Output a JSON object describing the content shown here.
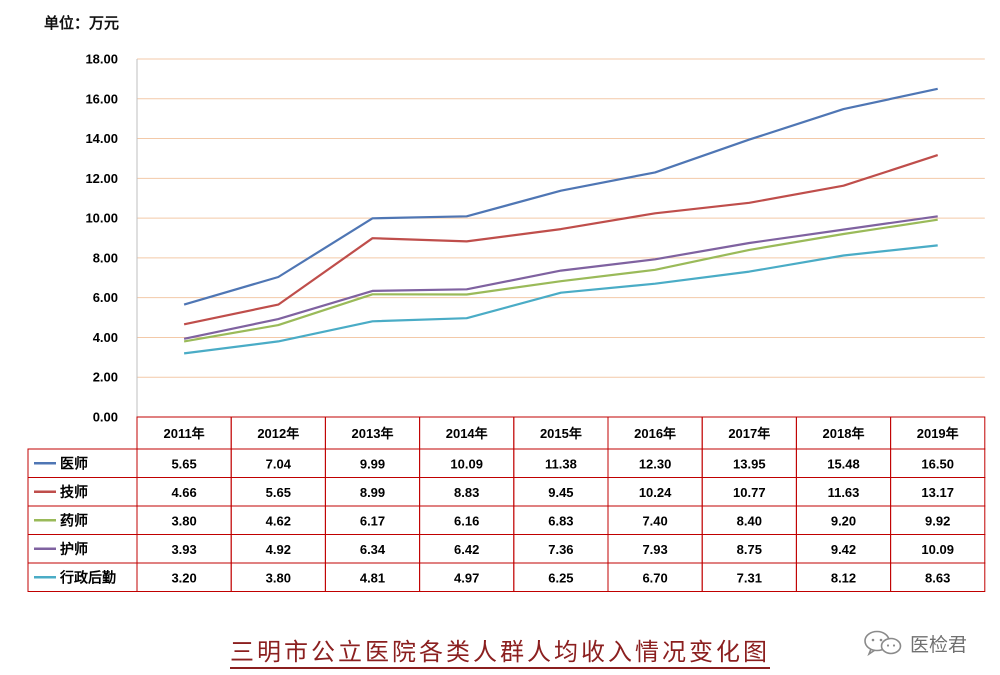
{
  "unit_label": "单位：万元",
  "chart_title": "三明市公立医院各类人群人均收入情况变化图",
  "watermark_text": "医检君",
  "watermark_icon": "wechat-icon",
  "chart_data": {
    "type": "line",
    "title": "三明市公立医院各类人群人均收入情况变化图",
    "ylabel": "单位：万元",
    "ylim": [
      0,
      18
    ],
    "yticks": [
      "0.00",
      "2.00",
      "4.00",
      "6.00",
      "8.00",
      "10.00",
      "12.00",
      "14.00",
      "16.00",
      "18.00"
    ],
    "grid": true,
    "legend": "data-table",
    "categories": [
      "2011年",
      "2012年",
      "2013年",
      "2014年",
      "2015年",
      "2016年",
      "2017年",
      "2018年",
      "2019年"
    ],
    "series": [
      {
        "name": "医师",
        "color": "#4f76b4",
        "values": [
          5.65,
          7.04,
          9.99,
          10.09,
          11.38,
          12.3,
          13.95,
          15.48,
          16.5
        ]
      },
      {
        "name": "技师",
        "color": "#bf4e4b",
        "values": [
          4.66,
          5.65,
          8.99,
          8.83,
          9.45,
          10.24,
          10.77,
          11.63,
          13.17
        ]
      },
      {
        "name": "药师",
        "color": "#9aba59",
        "values": [
          3.8,
          4.62,
          6.17,
          6.16,
          6.83,
          7.4,
          8.4,
          9.2,
          9.92
        ]
      },
      {
        "name": "护师",
        "color": "#7f62a0",
        "values": [
          3.93,
          4.92,
          6.34,
          6.42,
          7.36,
          7.93,
          8.75,
          9.42,
          10.09
        ]
      },
      {
        "name": "行政后勤",
        "color": "#4aacc6",
        "values": [
          3.2,
          3.8,
          4.81,
          4.97,
          6.25,
          6.7,
          7.31,
          8.12,
          8.63
        ]
      }
    ],
    "table_values": [
      [
        "5.65",
        "7.04",
        "9.99",
        "10.09",
        "11.38",
        "12.30",
        "13.95",
        "15.48",
        "16.50"
      ],
      [
        "4.66",
        "5.65",
        "8.99",
        "8.83",
        "9.45",
        "10.24",
        "10.77",
        "11.63",
        "13.17"
      ],
      [
        "3.80",
        "4.62",
        "6.17",
        "6.16",
        "6.83",
        "7.40",
        "8.40",
        "9.20",
        "9.92"
      ],
      [
        "3.93",
        "4.92",
        "6.34",
        "6.42",
        "7.36",
        "7.93",
        "8.75",
        "9.42",
        "10.09"
      ],
      [
        "3.20",
        "3.80",
        "4.81",
        "4.97",
        "6.25",
        "6.70",
        "7.31",
        "8.12",
        "8.63"
      ]
    ]
  }
}
